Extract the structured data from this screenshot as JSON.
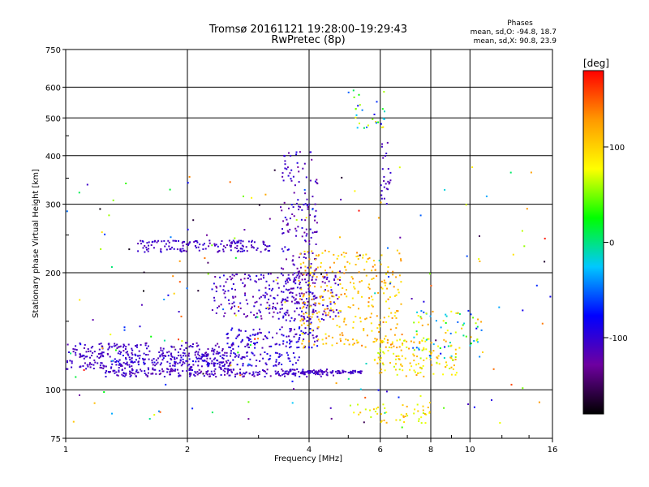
{
  "title_line1": "Tromsø 20161121 19:28:00–19:29:43",
  "title_line2": "RwPretec (8p)",
  "phases": {
    "heading": "Phases",
    "line_o": "mean, sd,O: -94.8, 18.7",
    "line_x": "mean, sd,X:  90.8, 23.9"
  },
  "colorbar": {
    "label": "[deg]",
    "ticks": [
      "100",
      "0",
      "-100"
    ],
    "tick_values": [
      100,
      0,
      -100
    ],
    "range": [
      -180,
      180
    ],
    "colors": [
      "#000000",
      "#6e00a0",
      "#0000ff",
      "#00c8ff",
      "#00ff00",
      "#ffff00",
      "#ff9900",
      "#ff0000"
    ]
  },
  "chart_data": {
    "type": "scatter",
    "title": "Tromsø 20161121 19:28:00–19:29:43",
    "subtitle": "RwPretec (8p)",
    "xlabel": "Frequency [MHz]",
    "ylabel": "Stationary phase Virtual Height [km]",
    "x_scale": "log",
    "y_scale": "log",
    "xlim": [
      1,
      16
    ],
    "ylim": [
      75,
      750
    ],
    "x_ticks": [
      1,
      2,
      4,
      6,
      8,
      10,
      16
    ],
    "x_tick_labels": [
      "1",
      "2",
      "4",
      "6",
      "8",
      "10",
      "16"
    ],
    "y_ticks": [
      75,
      100,
      200,
      300,
      400,
      500,
      600,
      750
    ],
    "y_tick_labels": [
      "75",
      "100",
      "200",
      "300",
      "400",
      "500",
      "600",
      "750"
    ],
    "grid": true,
    "color_variable": "phase [deg]",
    "point_groups": [
      {
        "freq_mhz": [
          1.0,
          2.6
        ],
        "height_km": [
          113,
          132
        ],
        "phase_deg": [
          -100,
          -120
        ],
        "count": 320
      },
      {
        "freq_mhz": [
          1.25,
          4.6
        ],
        "height_km": [
          108,
          113
        ],
        "phase_deg": [
          -95,
          -125
        ],
        "count": 240
      },
      {
        "freq_mhz": [
          1.3,
          3.8
        ],
        "height_km": [
          115,
          125
        ],
        "phase_deg": [
          -85,
          -115
        ],
        "count": 160
      },
      {
        "freq_mhz": [
          1.5,
          3.2
        ],
        "height_km": [
          226,
          242
        ],
        "phase_deg": [
          -95,
          -120
        ],
        "count": 150
      },
      {
        "freq_mhz": [
          2.3,
          4.8
        ],
        "height_km": [
          150,
          200
        ],
        "phase_deg": [
          -90,
          -130
        ],
        "count": 260
      },
      {
        "freq_mhz": [
          3.4,
          4.2
        ],
        "height_km": [
          150,
          410
        ],
        "phase_deg": [
          -90,
          -130
        ],
        "count": 200
      },
      {
        "freq_mhz": [
          2.5,
          4.2
        ],
        "height_km": [
          128,
          145
        ],
        "phase_deg": [
          -80,
          -120
        ],
        "count": 120
      },
      {
        "freq_mhz": [
          3.8,
          6.8
        ],
        "height_km": [
          128,
          230
        ],
        "phase_deg": [
          80,
          140
        ],
        "count": 300
      },
      {
        "freq_mhz": [
          3.8,
          5.4
        ],
        "height_km": [
          110,
          112
        ],
        "phase_deg": [
          -100,
          -115
        ],
        "count": 80
      },
      {
        "freq_mhz": [
          5.8,
          9.3
        ],
        "height_km": [
          108,
          135
        ],
        "phase_deg": [
          60,
          130
        ],
        "count": 130
      },
      {
        "freq_mhz": [
          7.2,
          10.8
        ],
        "height_km": [
          120,
          160
        ],
        "phase_deg": [
          -80,
          130
        ],
        "count": 80
      },
      {
        "freq_mhz": [
          5.0,
          6.2
        ],
        "height_km": [
          470,
          590
        ],
        "phase_deg": [
          -90,
          100
        ],
        "count": 30
      },
      {
        "freq_mhz": [
          5.0,
          8.0
        ],
        "height_km": [
          82,
          92
        ],
        "phase_deg": [
          60,
          120
        ],
        "count": 50
      },
      {
        "freq_mhz": [
          6.0,
          6.4
        ],
        "height_km": [
          300,
          440
        ],
        "phase_deg": [
          -100,
          -120
        ],
        "count": 25
      },
      {
        "freq_mhz": [
          1.0,
          16.0
        ],
        "height_km": [
          80,
          380
        ],
        "phase_deg": [
          -180,
          180
        ],
        "count": 180
      }
    ]
  }
}
